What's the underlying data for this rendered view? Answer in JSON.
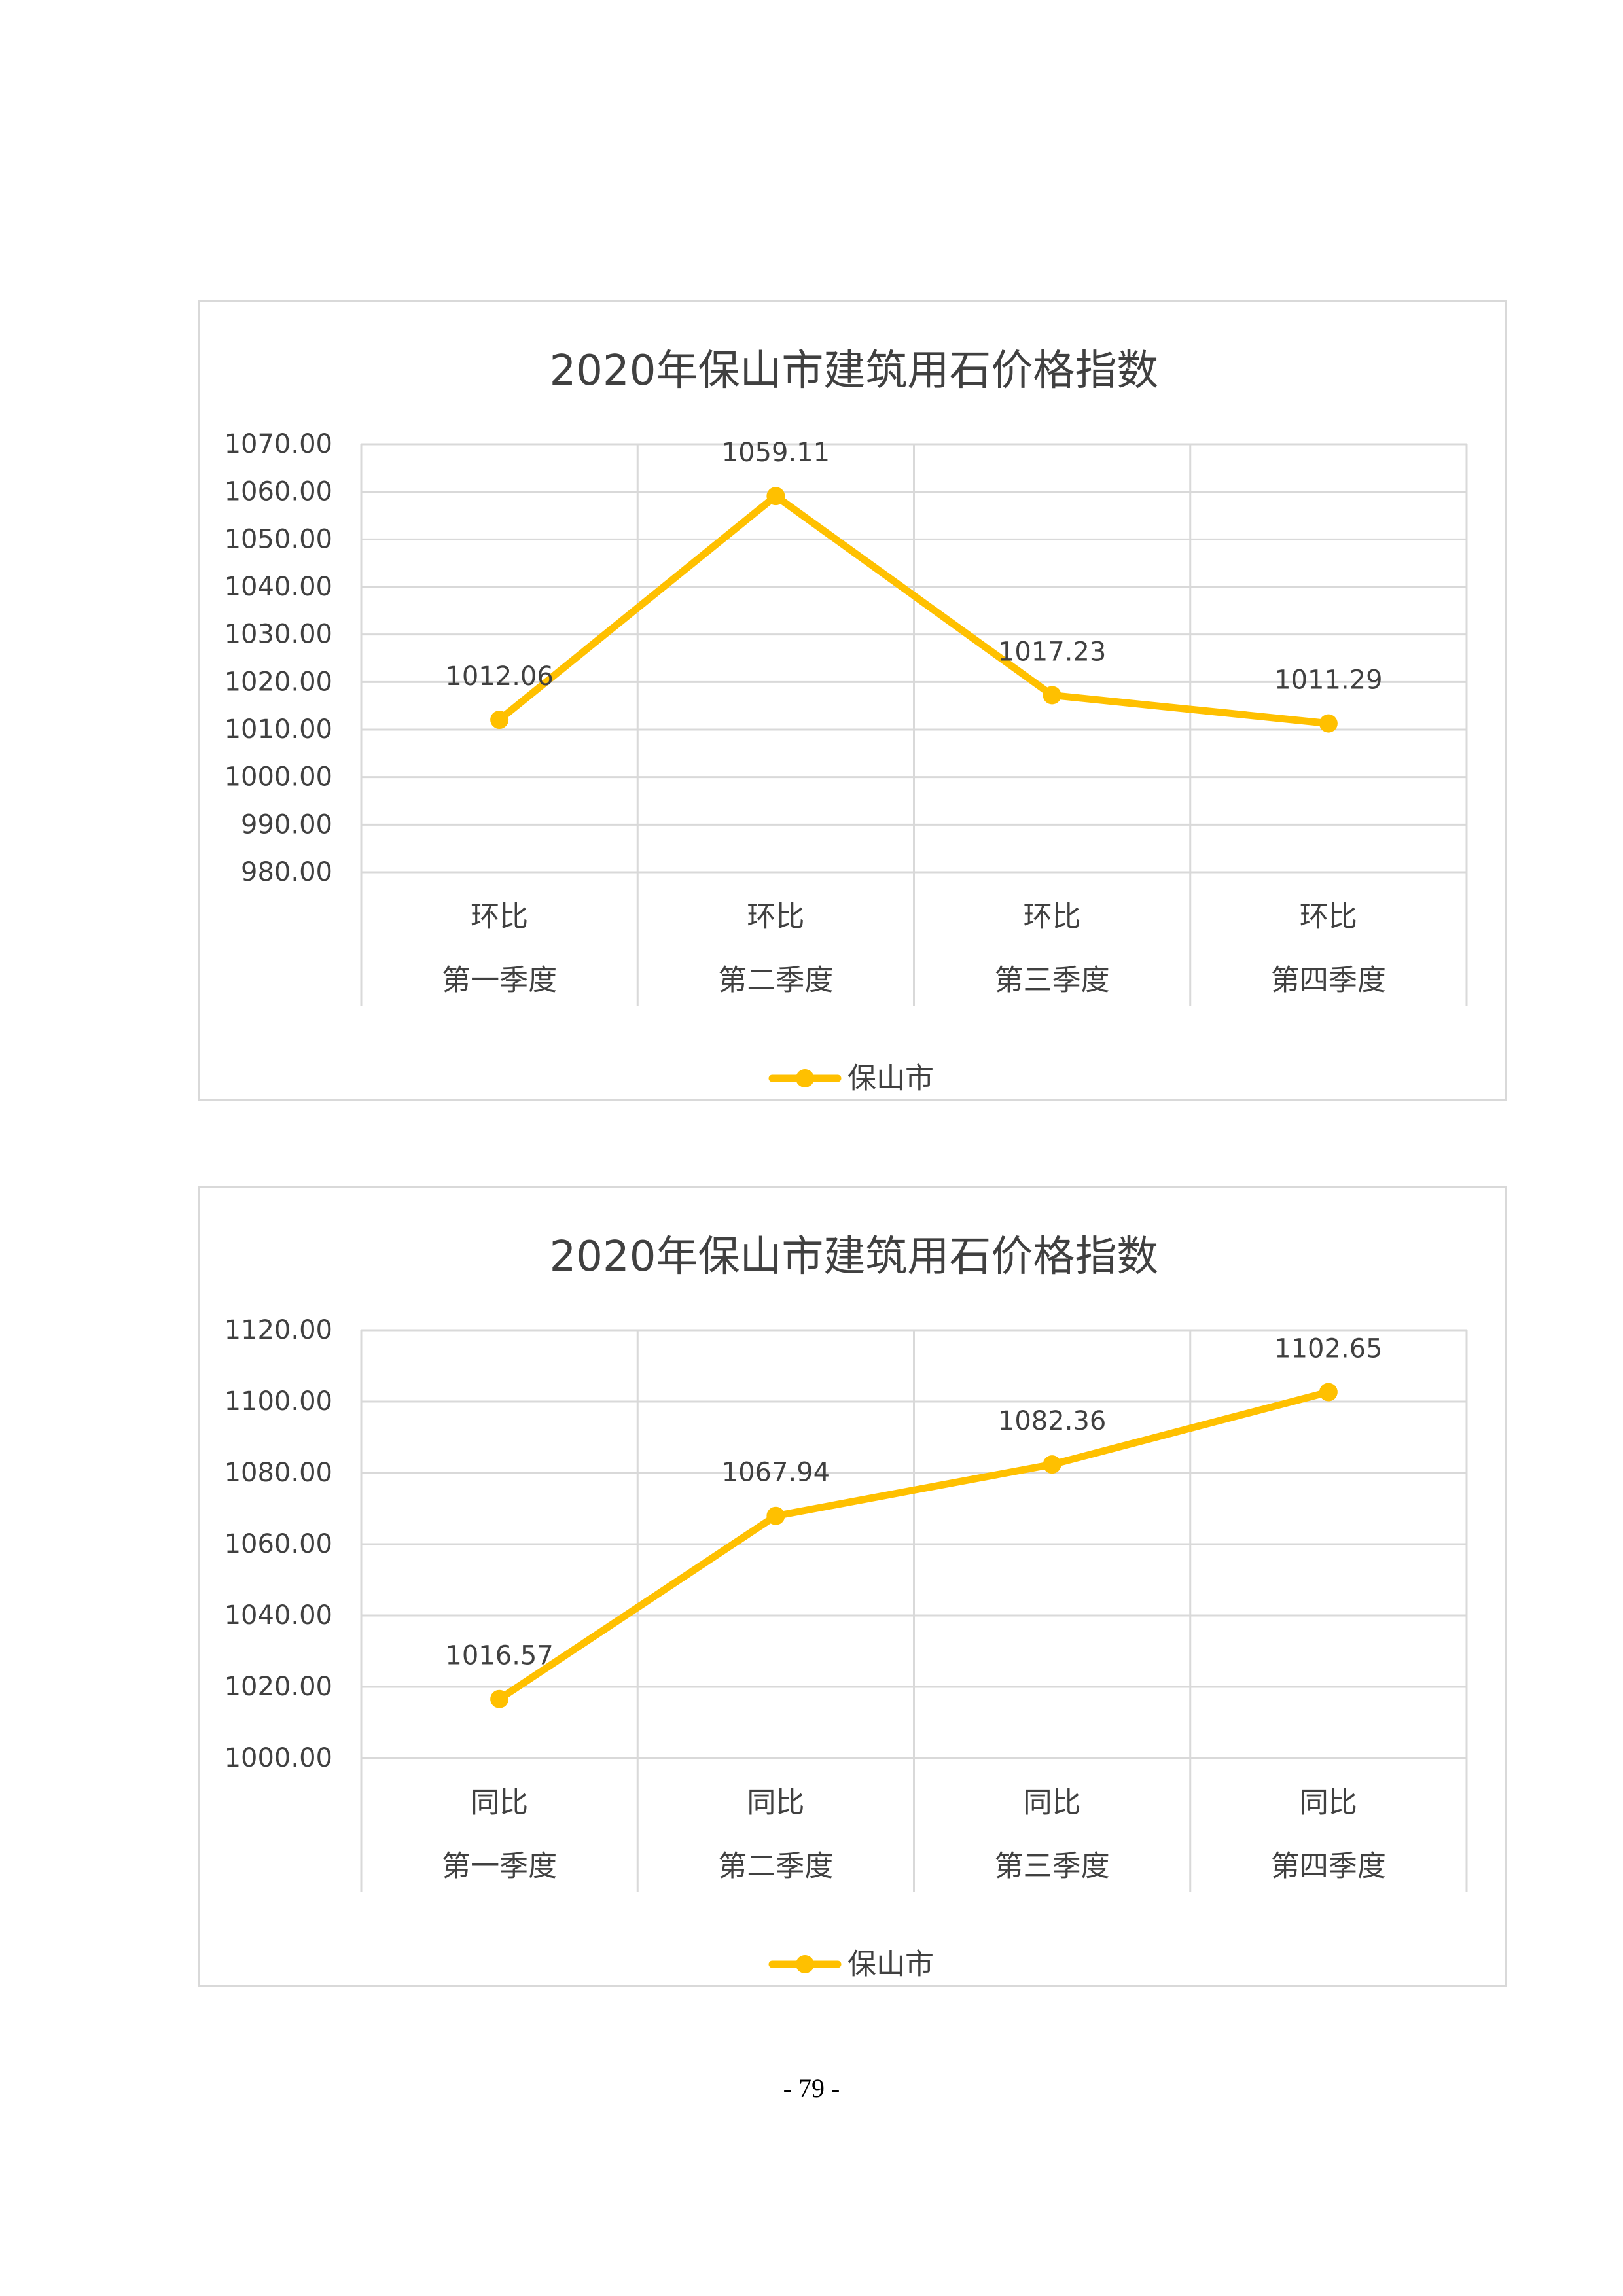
{
  "page": {
    "number": "- 79 -"
  },
  "chart_data": [
    {
      "type": "line",
      "title": "2020年保山市建筑用石价格指数",
      "categories": [
        [
          "环比",
          "第一季度"
        ],
        [
          "环比",
          "第二季度"
        ],
        [
          "环比",
          "第三季度"
        ],
        [
          "环比",
          "第四季度"
        ]
      ],
      "series": [
        {
          "name": "保山市",
          "values": [
            1012.06,
            1059.11,
            1017.23,
            1011.29
          ],
          "color": "#ffc000"
        }
      ],
      "data_labels": [
        "1012.06",
        "1059.11",
        "1017.23",
        "1011.29"
      ],
      "y_ticks": [
        "1070.00",
        "1060.00",
        "1050.00",
        "1040.00",
        "1030.00",
        "1020.00",
        "1010.00",
        "1000.00",
        "990.00",
        "980.00"
      ],
      "ylim": [
        980,
        1070
      ],
      "xlabel": "",
      "ylabel": "",
      "grid": true,
      "legend": "bottom"
    },
    {
      "type": "line",
      "title": "2020年保山市建筑用石价格指数",
      "categories": [
        [
          "同比",
          "第一季度"
        ],
        [
          "同比",
          "第二季度"
        ],
        [
          "同比",
          "第三季度"
        ],
        [
          "同比",
          "第四季度"
        ]
      ],
      "series": [
        {
          "name": "保山市",
          "values": [
            1016.57,
            1067.94,
            1082.36,
            1102.65
          ],
          "color": "#ffc000"
        }
      ],
      "data_labels": [
        "1016.57",
        "1067.94",
        "1082.36",
        "1102.65"
      ],
      "y_ticks": [
        "1120.00",
        "1100.00",
        "1080.00",
        "1060.00",
        "1040.00",
        "1020.00",
        "1000.00"
      ],
      "ylim": [
        1000,
        1120
      ],
      "xlabel": "",
      "ylabel": "",
      "grid": true,
      "legend": "bottom"
    }
  ]
}
